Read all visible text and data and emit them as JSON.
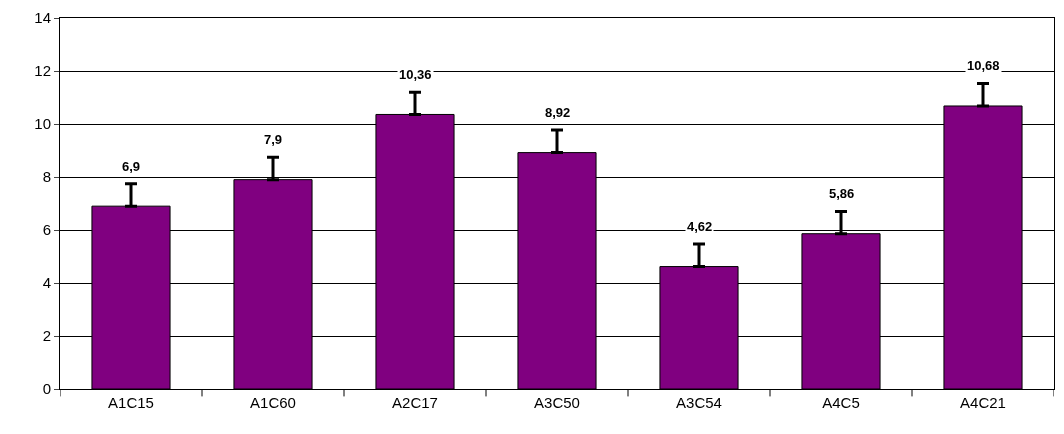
{
  "chart_data": {
    "type": "bar",
    "categories": [
      "A1C15",
      "A1C60",
      "A2C17",
      "A3C50",
      "A3C54",
      "A4C5",
      "A4C21"
    ],
    "values": [
      6.9,
      7.9,
      10.36,
      8.92,
      4.62,
      5.86,
      10.68
    ],
    "value_labels": [
      "6,9",
      "7,9",
      "10,36",
      "8,92",
      "4,62",
      "5,86",
      "10,68"
    ],
    "errors": [
      [
        6.9,
        7.75
      ],
      [
        7.9,
        8.75
      ],
      [
        10.36,
        11.2
      ],
      [
        8.92,
        9.77
      ],
      [
        4.62,
        5.47
      ],
      [
        5.86,
        6.7
      ],
      [
        10.68,
        11.53
      ]
    ],
    "color": "#800080",
    "ylim": [
      0,
      14
    ],
    "yticks": [
      0,
      2,
      4,
      6,
      8,
      10,
      12,
      14
    ],
    "grid": "y"
  }
}
